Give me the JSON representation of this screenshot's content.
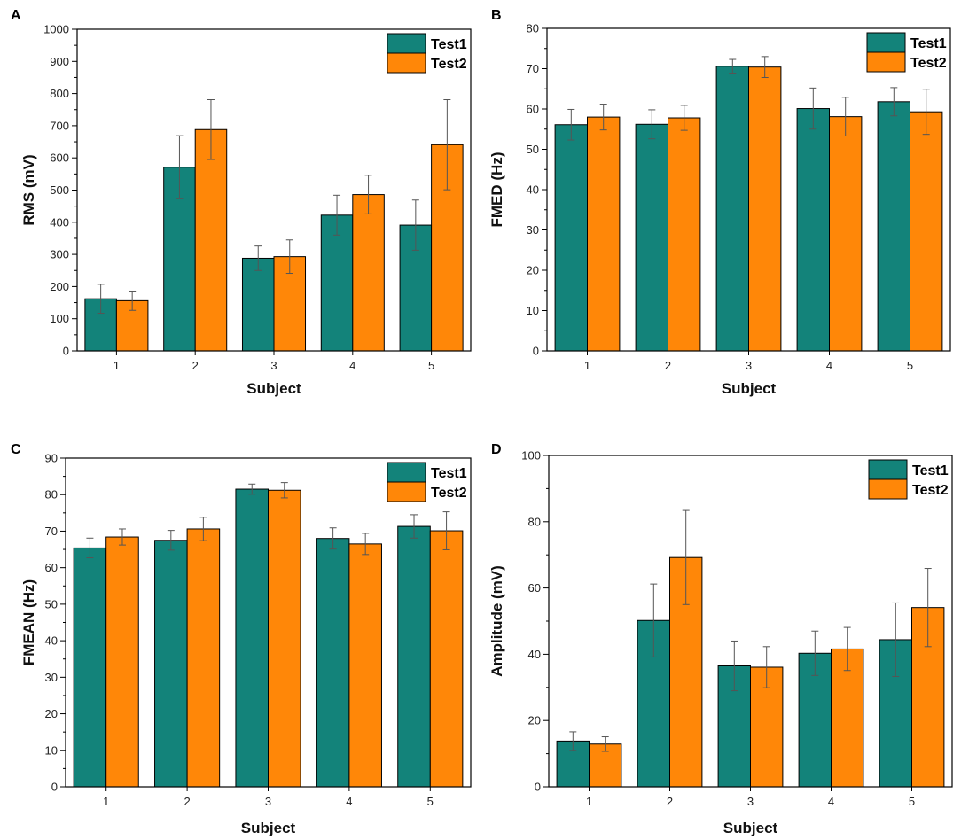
{
  "colors": {
    "test1": "#13837a",
    "test2": "#ff8708",
    "axis": "#000000",
    "error": "#555555"
  },
  "chart_data": [
    {
      "type": "bar",
      "panel": "A",
      "title": "",
      "xlabel": "Subject",
      "ylabel": "RMS (mV)",
      "categories": [
        "1",
        "2",
        "3",
        "4",
        "5"
      ],
      "ylim": [
        0,
        1000
      ],
      "yticks": [
        0,
        100,
        200,
        300,
        400,
        500,
        600,
        700,
        800,
        900,
        1000
      ],
      "yminor": 50,
      "legend_position": "top-right",
      "series": [
        {
          "name": "Test1",
          "values": [
            162,
            571,
            288,
            422,
            391
          ],
          "errors": [
            45,
            98,
            38,
            62,
            78
          ]
        },
        {
          "name": "Test2",
          "values": [
            156,
            688,
            293,
            486,
            641
          ],
          "errors": [
            30,
            93,
            52,
            60,
            140
          ]
        }
      ]
    },
    {
      "type": "bar",
      "panel": "B",
      "title": "",
      "xlabel": "Subject",
      "ylabel": "FMED (Hz)",
      "categories": [
        "1",
        "2",
        "3",
        "4",
        "5"
      ],
      "ylim": [
        0,
        80
      ],
      "yticks": [
        0,
        10,
        20,
        30,
        40,
        50,
        60,
        70,
        80
      ],
      "yminor": 5,
      "legend_position": "top-right",
      "series": [
        {
          "name": "Test1",
          "values": [
            56.1,
            56.2,
            70.6,
            60.1,
            61.8
          ],
          "errors": [
            3.8,
            3.6,
            1.7,
            5.1,
            3.5
          ]
        },
        {
          "name": "Test2",
          "values": [
            58.0,
            57.8,
            70.4,
            58.1,
            59.3
          ],
          "errors": [
            3.2,
            3.1,
            2.6,
            4.8,
            5.6
          ]
        }
      ]
    },
    {
      "type": "bar",
      "panel": "C",
      "title": "",
      "xlabel": "Subject",
      "ylabel": "FMEAN (Hz)",
      "categories": [
        "1",
        "2",
        "3",
        "4",
        "5"
      ],
      "ylim": [
        0,
        90
      ],
      "yticks": [
        0,
        10,
        20,
        30,
        40,
        50,
        60,
        70,
        80,
        90
      ],
      "yminor": 5,
      "legend_position": "top-right",
      "series": [
        {
          "name": "Test1",
          "values": [
            65.4,
            67.5,
            81.5,
            68.0,
            71.3
          ],
          "errors": [
            2.7,
            2.7,
            1.4,
            2.9,
            3.2
          ]
        },
        {
          "name": "Test2",
          "values": [
            68.4,
            70.6,
            81.2,
            66.5,
            70.1
          ],
          "errors": [
            2.2,
            3.2,
            2.1,
            2.9,
            5.2
          ]
        }
      ]
    },
    {
      "type": "bar",
      "panel": "D",
      "title": "",
      "xlabel": "Subject",
      "ylabel": "Amplitude (mV)",
      "categories": [
        "1",
        "2",
        "3",
        "4",
        "5"
      ],
      "ylim": [
        0,
        100
      ],
      "yticks": [
        0,
        20,
        40,
        60,
        80,
        100
      ],
      "yminor": 10,
      "legend_position": "top-right",
      "series": [
        {
          "name": "Test1",
          "values": [
            13.8,
            50.2,
            36.5,
            40.3,
            44.4
          ],
          "errors": [
            2.8,
            11.0,
            7.5,
            6.7,
            11.1
          ]
        },
        {
          "name": "Test2",
          "values": [
            12.9,
            69.2,
            36.1,
            41.6,
            54.1
          ],
          "errors": [
            2.2,
            14.2,
            6.2,
            6.5,
            11.8
          ]
        }
      ]
    }
  ]
}
